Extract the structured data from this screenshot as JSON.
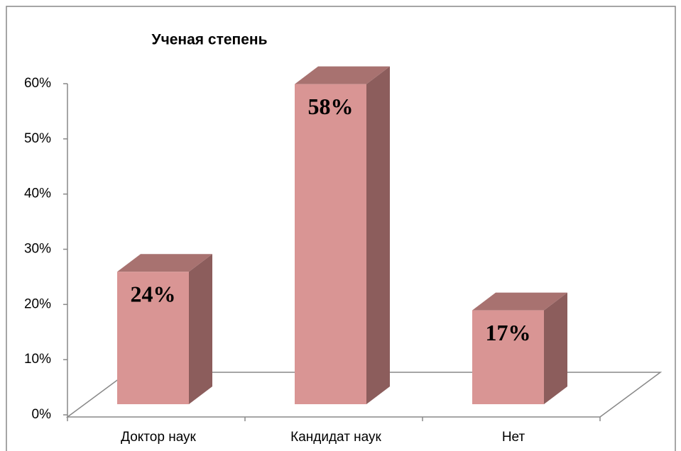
{
  "chart_data": {
    "type": "bar3d",
    "title": "Ученая степень",
    "categories": [
      "Доктор наук",
      "Кандидат наук",
      "Нет"
    ],
    "values": [
      24,
      58,
      17
    ],
    "value_labels": [
      "24%",
      "58%",
      "17%"
    ],
    "color": "#d99594",
    "ylim": [
      0,
      60
    ],
    "yticks": [
      {
        "value": 0,
        "label": "0%"
      },
      {
        "value": 10,
        "label": "10%"
      },
      {
        "value": 20,
        "label": "20%"
      },
      {
        "value": 30,
        "label": "30%"
      },
      {
        "value": 40,
        "label": "40%"
      },
      {
        "value": 50,
        "label": "50%"
      },
      {
        "value": 60,
        "label": "60%"
      }
    ]
  }
}
